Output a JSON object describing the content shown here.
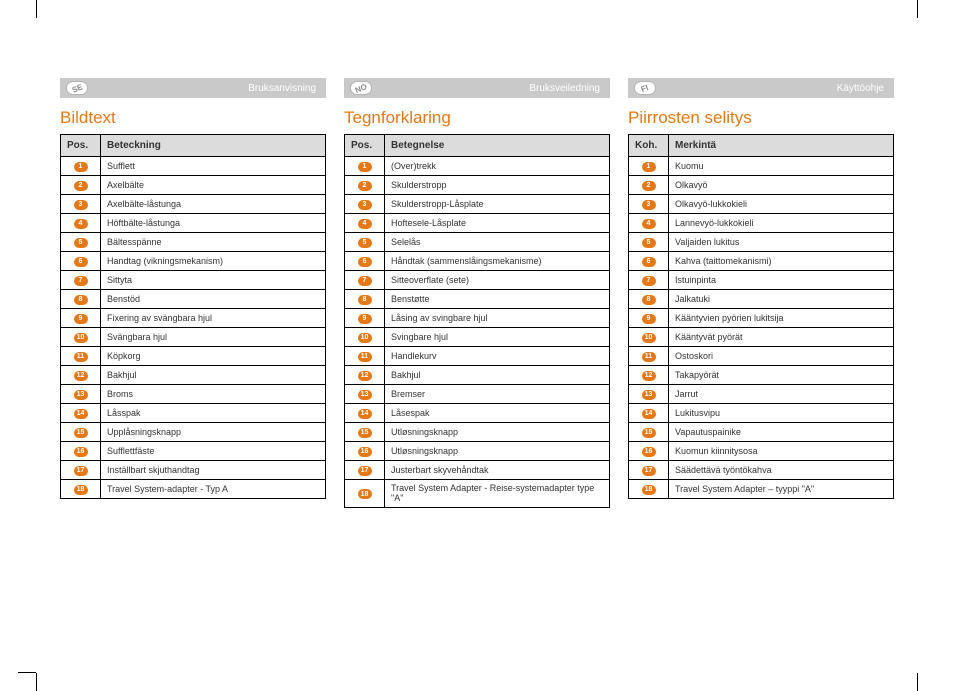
{
  "colors": {
    "accent": "#e67817",
    "bar_bg": "#c9c9c9",
    "header_bg": "#dcdcdc",
    "border": "#000000",
    "badge_text": "#8a8a8a"
  },
  "columns": [
    {
      "lang_code": "SE",
      "bar_label": "Bruksanvisning",
      "title": "Bildtext",
      "header_pos": "Pos.",
      "header_name": "Beteckning",
      "rows": [
        {
          "n": "1",
          "label": "Sufflett"
        },
        {
          "n": "2",
          "label": "Axelbälte"
        },
        {
          "n": "3",
          "label": "Axelbälte-låstunga"
        },
        {
          "n": "4",
          "label": "Höftbälte-låstunga"
        },
        {
          "n": "5",
          "label": "Bältesspänne"
        },
        {
          "n": "6",
          "label": "Handtag (vikningsmekanism)"
        },
        {
          "n": "7",
          "label": "Sittyta"
        },
        {
          "n": "8",
          "label": "Benstöd"
        },
        {
          "n": "9",
          "label": "Fixering av svängbara hjul"
        },
        {
          "n": "10",
          "label": "Svängbara hjul"
        },
        {
          "n": "11",
          "label": "Köpkorg"
        },
        {
          "n": "12",
          "label": "Bakhjul"
        },
        {
          "n": "13",
          "label": "Broms"
        },
        {
          "n": "14",
          "label": "Låsspak"
        },
        {
          "n": "15",
          "label": "Upplåsningsknapp"
        },
        {
          "n": "16",
          "label": "Sufflettfäste"
        },
        {
          "n": "17",
          "label": "Inställbart skjuthandtag"
        },
        {
          "n": "18",
          "label": "Travel System-adapter - Typ A"
        }
      ]
    },
    {
      "lang_code": "NO",
      "bar_label": "Bruksveiledning",
      "title": "Tegnforklaring",
      "header_pos": "Pos.",
      "header_name": "Betegnelse",
      "rows": [
        {
          "n": "1",
          "label": "(Over)trekk"
        },
        {
          "n": "2",
          "label": "Skulderstropp"
        },
        {
          "n": "3",
          "label": "Skulderstropp-Låsplate"
        },
        {
          "n": "4",
          "label": "Hoftesele-Låsplate"
        },
        {
          "n": "5",
          "label": "Selelås"
        },
        {
          "n": "6",
          "label": "Håndtak (sammenslåingsmekanisme)"
        },
        {
          "n": "7",
          "label": "Sitteoverflate (sete)"
        },
        {
          "n": "8",
          "label": "Benstøtte"
        },
        {
          "n": "9",
          "label": "Låsing av svingbare hjul"
        },
        {
          "n": "10",
          "label": "Svingbare hjul"
        },
        {
          "n": "11",
          "label": "Handlekurv"
        },
        {
          "n": "12",
          "label": "Bakhjul"
        },
        {
          "n": "13",
          "label": "Bremser"
        },
        {
          "n": "14",
          "label": "Låsespak"
        },
        {
          "n": "15",
          "label": "Utløsningsknapp"
        },
        {
          "n": "16",
          "label": "Utløsningsknapp"
        },
        {
          "n": "17",
          "label": "Justerbart skyvehåndtak"
        },
        {
          "n": "18",
          "label": "Travel System Adapter -\nReise-systemadapter type \"A\""
        }
      ]
    },
    {
      "lang_code": "FI",
      "bar_label": "Käyttöohje",
      "title": "Piirrosten selitys",
      "header_pos": "Koh.",
      "header_name": "Merkintä",
      "rows": [
        {
          "n": "1",
          "label": "Kuomu"
        },
        {
          "n": "2",
          "label": "Olkavyö"
        },
        {
          "n": "3",
          "label": "Olkavyö-lukkokieli"
        },
        {
          "n": "4",
          "label": "Lannevyö-lukkokieli"
        },
        {
          "n": "5",
          "label": "Valjaiden lukitus"
        },
        {
          "n": "6",
          "label": "Kahva (taittomekanismi)"
        },
        {
          "n": "7",
          "label": "Istuinpinta"
        },
        {
          "n": "8",
          "label": "Jalkatuki"
        },
        {
          "n": "9",
          "label": "Kääntyvien pyörien lukitsija"
        },
        {
          "n": "10",
          "label": "Kääntyvät pyörät"
        },
        {
          "n": "11",
          "label": "Ostoskori"
        },
        {
          "n": "12",
          "label": "Takapyörät"
        },
        {
          "n": "13",
          "label": "Jarrut"
        },
        {
          "n": "14",
          "label": "Lukitusvipu"
        },
        {
          "n": "15",
          "label": "Vapautuspainike"
        },
        {
          "n": "16",
          "label": "Kuomun kiinnitysosa"
        },
        {
          "n": "17",
          "label": "Säädettävä työntökahva"
        },
        {
          "n": "18",
          "label": "Travel System Adapter – tyyppi \"A\""
        }
      ]
    }
  ]
}
